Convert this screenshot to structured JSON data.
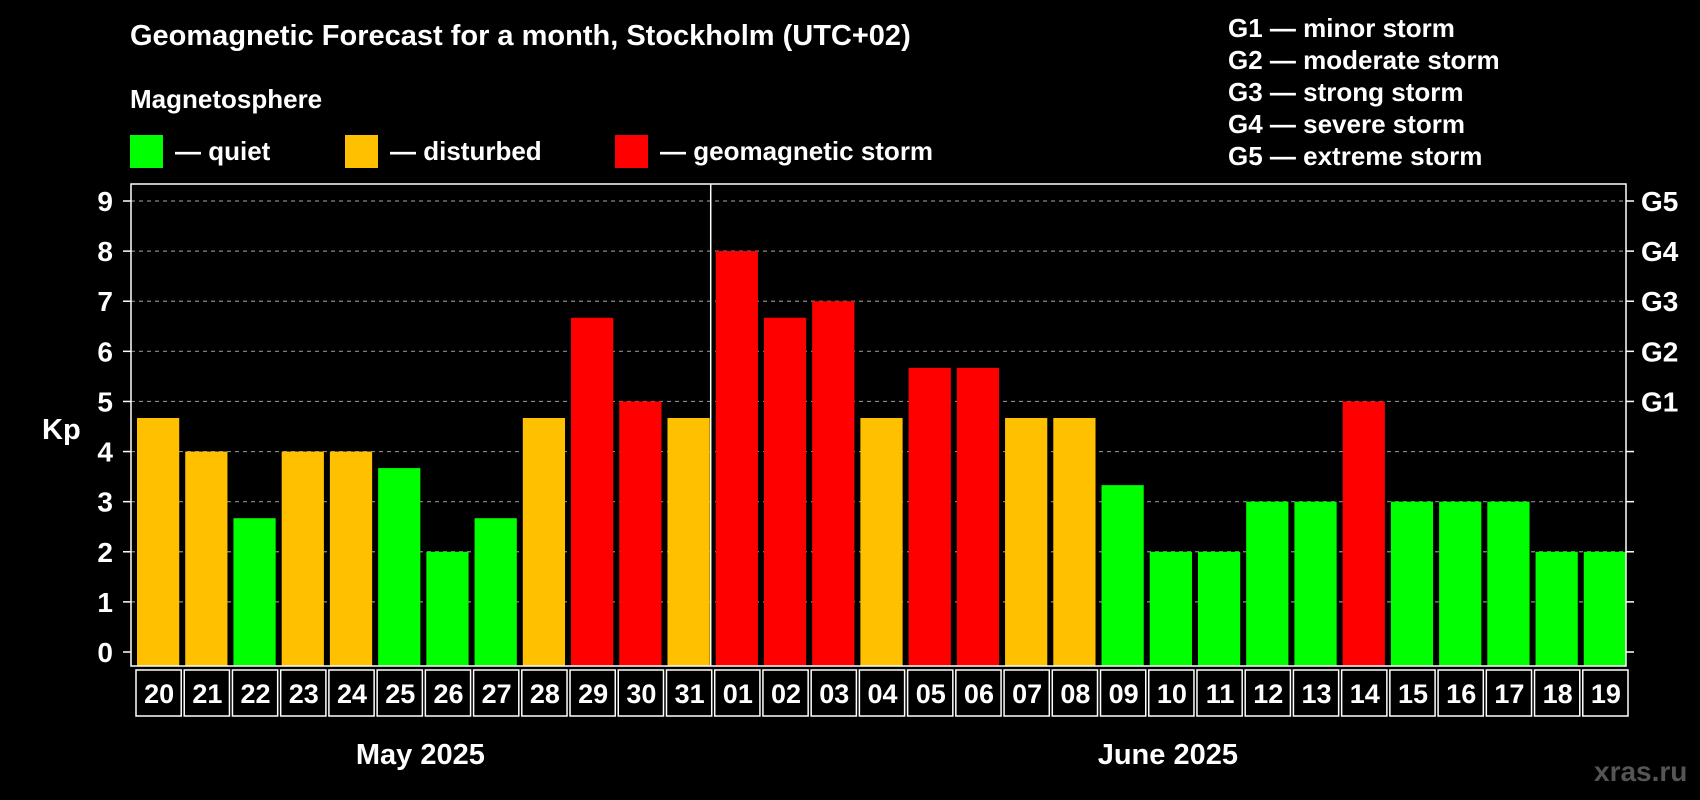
{
  "title": "Geomagnetic Forecast for a month, Stockholm (UTC+02)",
  "subtitle": "Magnetosphere",
  "legend": [
    {
      "label": "— quiet",
      "color": "#00ff00"
    },
    {
      "label": "— disturbed",
      "color": "#ffc000"
    },
    {
      "label": "— geomagnetic storm",
      "color": "#ff0000"
    }
  ],
  "g_legend": [
    "G1 — minor storm",
    "G2 — moderate storm",
    "G3 — strong storm",
    "G4 — severe storm",
    "G5 — extreme storm"
  ],
  "watermark": "xras.ru",
  "chart_data": {
    "type": "bar",
    "ylabel": "Kp",
    "ylim": [
      0,
      9
    ],
    "grid": true,
    "yticks": [
      "0",
      "1",
      "2",
      "3",
      "4",
      "5",
      "6",
      "7",
      "8",
      "9"
    ],
    "right_ticks": [
      {
        "value": 5,
        "label": "G1"
      },
      {
        "value": 6,
        "label": "G2"
      },
      {
        "value": 7,
        "label": "G3"
      },
      {
        "value": 8,
        "label": "G4"
      },
      {
        "value": 9,
        "label": "G5"
      }
    ],
    "months": [
      {
        "label": "May 2025",
        "first": 0,
        "last": 11
      },
      {
        "label": "June 2025",
        "first": 12,
        "last": 30
      }
    ],
    "categories": [
      "20",
      "21",
      "22",
      "23",
      "24",
      "25",
      "26",
      "27",
      "28",
      "29",
      "30",
      "31",
      "01",
      "02",
      "03",
      "04",
      "05",
      "06",
      "07",
      "08",
      "09",
      "10",
      "11",
      "12",
      "13",
      "14",
      "15",
      "16",
      "17",
      "18",
      "19"
    ],
    "values": [
      4.67,
      4.0,
      2.67,
      4.0,
      4.0,
      3.67,
      2.0,
      2.67,
      4.67,
      6.67,
      5.0,
      4.67,
      8.0,
      6.67,
      7.0,
      4.67,
      5.67,
      5.67,
      4.67,
      4.67,
      3.33,
      2.0,
      2.0,
      3.0,
      3.0,
      5.0,
      3.0,
      3.0,
      3.0,
      2.0,
      2.0
    ],
    "colors": {
      "quiet": "#00ff00",
      "disturbed": "#ffc000",
      "storm": "#ff0000"
    }
  }
}
